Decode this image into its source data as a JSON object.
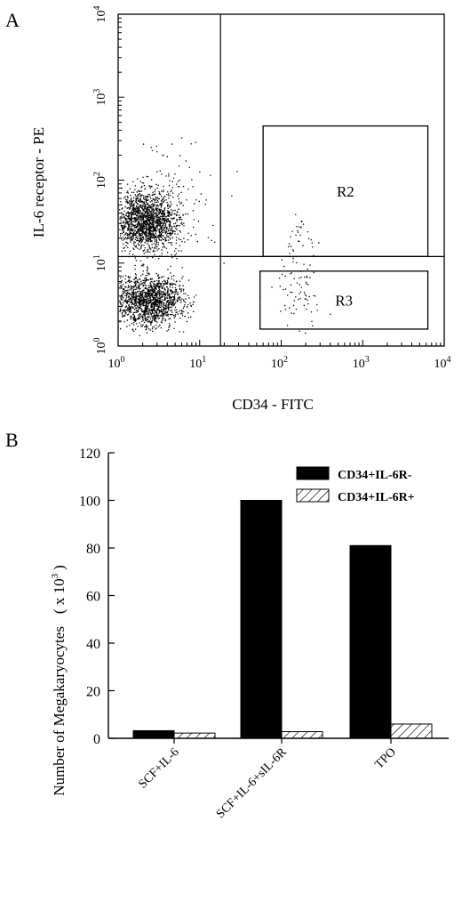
{
  "chart_data": [
    {
      "panel": "A",
      "type": "scatter",
      "xlabel": "CD34 - FITC",
      "ylabel": "IL-6 receptor - PE",
      "xscale": "log",
      "yscale": "log",
      "xlim": [
        1,
        10000
      ],
      "ylim": [
        1,
        10000
      ],
      "x_ticks": [
        {
          "base": "10",
          "exp": "0"
        },
        {
          "base": "10",
          "exp": "1"
        },
        {
          "base": "10",
          "exp": "2"
        },
        {
          "base": "10",
          "exp": "3"
        },
        {
          "base": "10",
          "exp": "4"
        }
      ],
      "y_ticks": [
        {
          "base": "10",
          "exp": "0"
        },
        {
          "base": "10",
          "exp": "1"
        },
        {
          "base": "10",
          "exp": "2"
        },
        {
          "base": "10",
          "exp": "3"
        },
        {
          "base": "10",
          "exp": "4"
        }
      ],
      "quadrant_lines": {
        "x": 18,
        "y": 12
      },
      "gates": [
        {
          "name": "R2",
          "x": [
            60,
            6300
          ],
          "y": [
            12,
            450
          ]
        },
        {
          "name": "R3",
          "x": [
            55,
            6300
          ],
          "y": [
            1.6,
            8
          ]
        }
      ],
      "clusters": [
        {
          "x_center": 2.2,
          "y_center": 32,
          "x_spread_decades": 0.28,
          "y_spread_decades": 0.24,
          "points": 1600
        },
        {
          "x_center": 2.4,
          "y_center": 3.6,
          "x_spread_decades": 0.3,
          "y_spread_decades": 0.22,
          "points": 1500
        },
        {
          "x_center": 3.5,
          "y_center": 60,
          "x_spread_decades": 0.45,
          "y_spread_decades": 0.5,
          "points": 160
        },
        {
          "x_center": 160,
          "y_center": 5,
          "x_spread_decades": 0.22,
          "y_spread_decades": 0.28,
          "points": 75
        },
        {
          "x_center": 170,
          "y_center": 20,
          "x_spread_decades": 0.15,
          "y_spread_decades": 0.22,
          "points": 28
        }
      ]
    },
    {
      "panel": "B",
      "type": "bar",
      "ylabel": "Number of Megakaryocytes",
      "ylabel_unit": "( x 10",
      "ylabel_unit_exp": "3",
      "ylabel_unit_close": ")",
      "ylim": [
        0,
        120
      ],
      "yticks": [
        "0",
        "20",
        "40",
        "60",
        "80",
        "100",
        "120"
      ],
      "categories": [
        "SCF+IL-6",
        "SCF+IL-6+sIL-6R",
        "TPO"
      ],
      "series": [
        {
          "name": "CD34+IL-6R-",
          "values": [
            3.2,
            100,
            81
          ],
          "fill": "#000000"
        },
        {
          "name": "CD34+IL-6R+",
          "values": [
            2.2,
            2.8,
            6
          ],
          "fill": "hatch"
        }
      ],
      "legend_placement": "top-right"
    }
  ]
}
